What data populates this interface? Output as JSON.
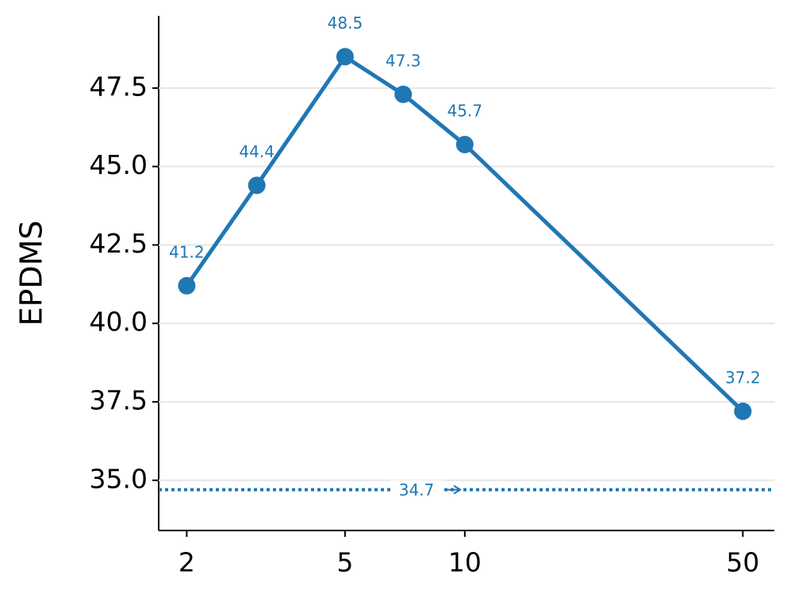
{
  "chart_data": {
    "type": "line",
    "y_label": "EPDMS",
    "xscale": "log",
    "x": [
      2,
      3,
      5,
      7,
      10,
      50
    ],
    "series": [
      {
        "color": "#1f77b4",
        "values": [
          41.2,
          44.4,
          48.5,
          47.3,
          45.7,
          37.2
        ]
      }
    ],
    "baseline": 34.7,
    "xlim": [
      1.7,
      60
    ],
    "xticks": [
      2,
      5,
      10,
      50
    ],
    "ylim": [
      33.4,
      49.8
    ],
    "yticks": [
      {
        "value": 35,
        "label": "35.0"
      },
      {
        "value": 37.5,
        "label": "37.5"
      },
      {
        "value": 40,
        "label": "40.0"
      },
      {
        "value": 42.5,
        "label": "42.5"
      },
      {
        "value": 45,
        "label": "45.0"
      },
      {
        "value": 47.5,
        "label": "47.5"
      }
    ],
    "grid": true
  }
}
